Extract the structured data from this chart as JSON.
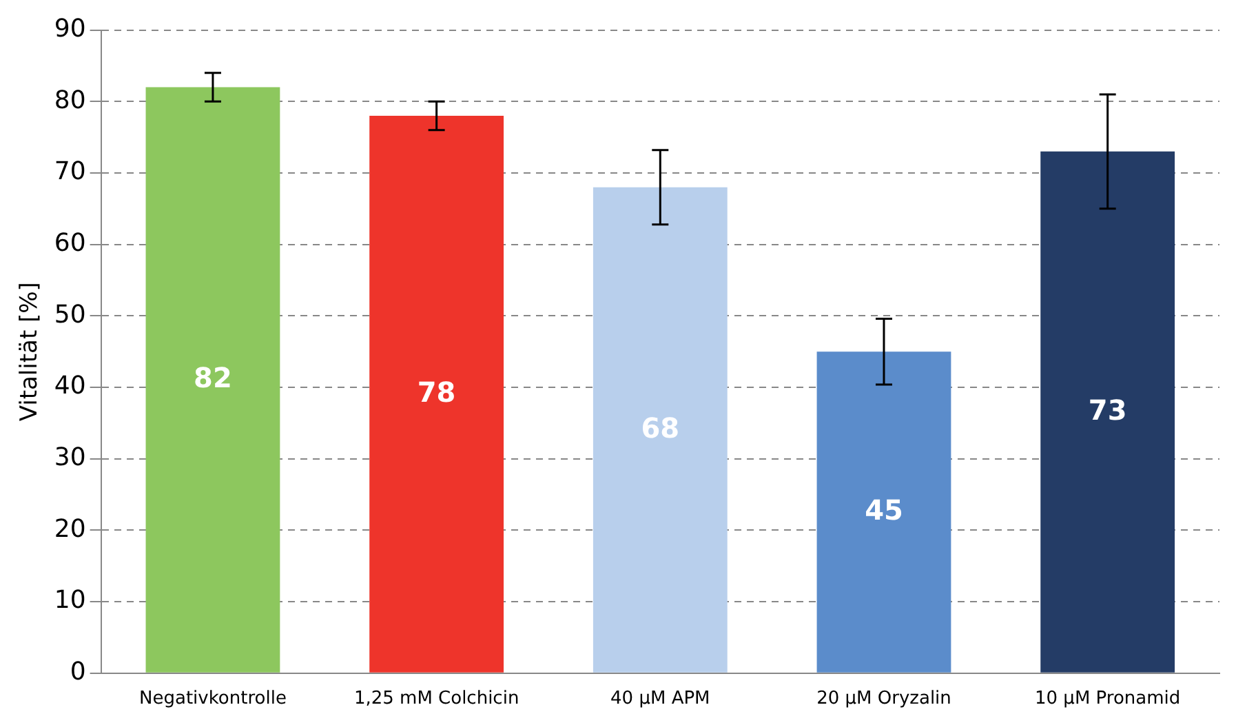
{
  "chart_data": {
    "type": "bar",
    "ylabel": "Vitalität [%]",
    "categories": [
      "Negativkontrolle",
      "1,25 mM Colchicin",
      "40 µM APM",
      "20 µM Oryzalin",
      "10 µM Pronamid"
    ],
    "values": [
      82,
      78,
      68,
      45,
      73
    ],
    "colors": [
      "#8dc75e",
      "#ee342b",
      "#b8cfec",
      "#5b8ccb",
      "#243c66"
    ],
    "errors": [
      2,
      2,
      5.2,
      4.6,
      8
    ],
    "ylim": [
      0,
      90
    ],
    "yticks": [
      0,
      10,
      20,
      30,
      40,
      50,
      60,
      70,
      80,
      90
    ],
    "grid": "y",
    "legend": false,
    "data_labels": true
  }
}
